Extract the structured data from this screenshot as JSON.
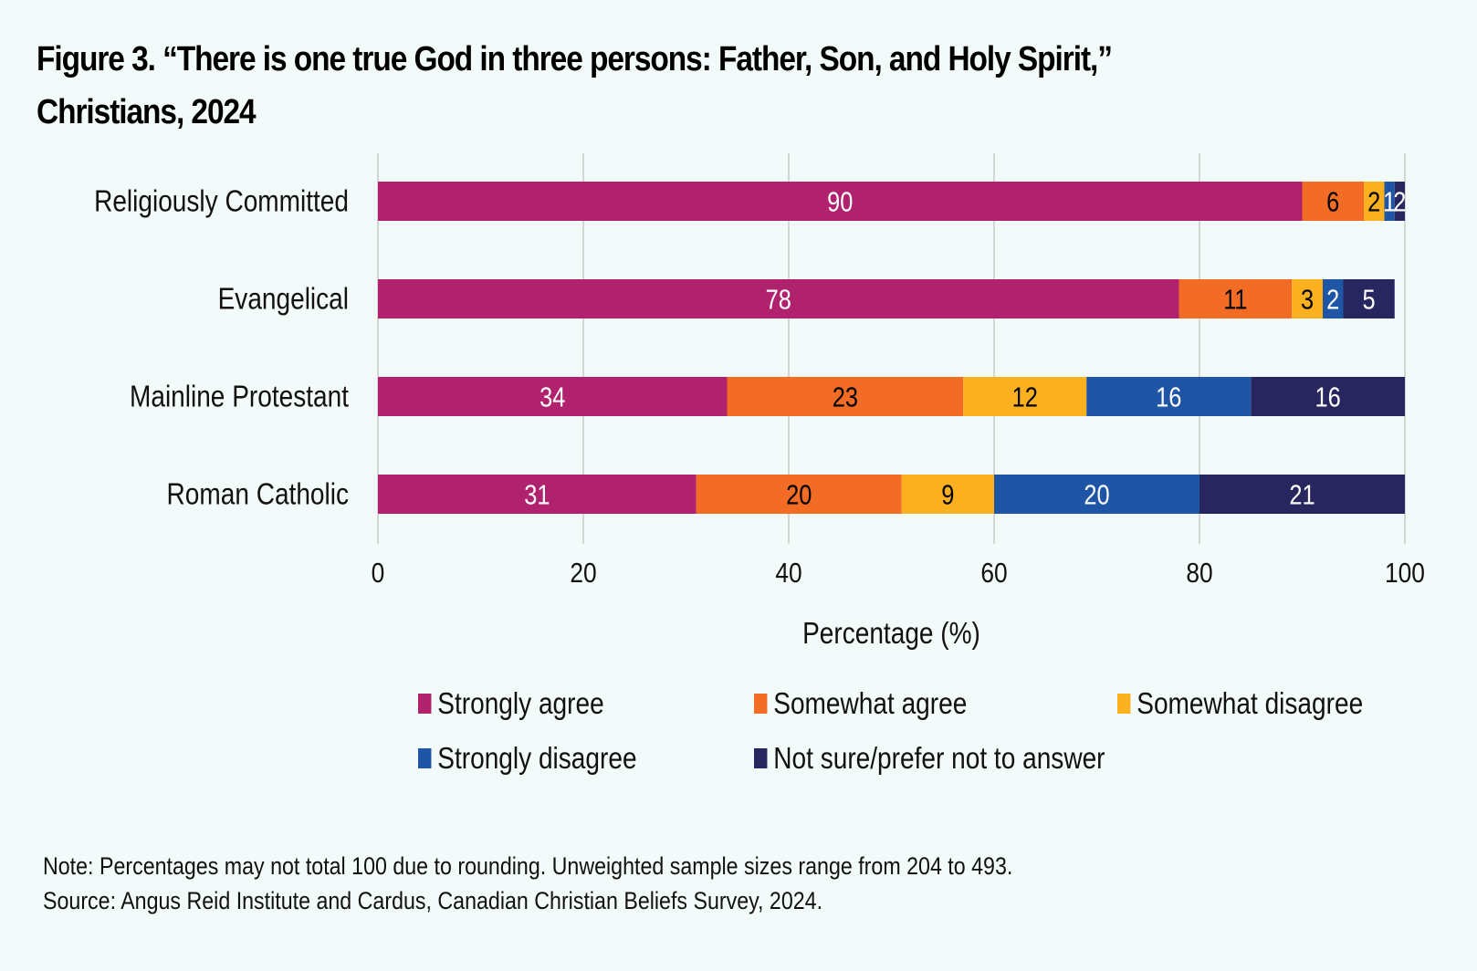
{
  "chart_data": {
    "type": "bar",
    "orientation": "horizontal",
    "stacked": true,
    "title": "Figure 3. “There is one true God in three persons: Father, Son, and Holy Spirit,” Christians, 2024",
    "title_lines": [
      "Figure 3. “There is one true God in three persons: Father, Son, and Holy Spirit,”",
      "Christians, 2024"
    ],
    "categories": [
      "Religiously Committed",
      "Evangelical",
      "Mainline Protestant",
      "Roman Catholic"
    ],
    "series": [
      {
        "name": "Strongly agree",
        "color": "#b0216e",
        "label_color": "#ffffff",
        "values": [
          90,
          78,
          34,
          31
        ]
      },
      {
        "name": "Somewhat agree",
        "color": "#f26c26",
        "label_color": "#000000",
        "values": [
          6,
          11,
          23,
          20
        ]
      },
      {
        "name": "Somewhat disagree",
        "color": "#fbb11f",
        "label_color": "#000000",
        "values": [
          2,
          3,
          12,
          9
        ]
      },
      {
        "name": "Strongly disagree",
        "color": "#1f55a5",
        "label_color": "#ffffff",
        "values": [
          1,
          2,
          16,
          20
        ]
      },
      {
        "name": "Not sure/prefer not to answer",
        "color": "#28265f",
        "label_color": "#ffffff",
        "values": [
          2,
          5,
          16,
          21
        ]
      }
    ],
    "xlabel": "Percentage (%)",
    "ylabel": "",
    "xlim": [
      0,
      100
    ],
    "xticks": [
      0,
      20,
      40,
      60,
      80,
      100
    ],
    "grid": true,
    "legend_position": "bottom"
  },
  "notes": {
    "note": "Note: Percentages may not total 100 due to rounding. Unweighted sample sizes range from 204 to 493.",
    "source": "Source: Angus Reid Institute and Cardus, Canadian Christian Beliefs Survey, 2024."
  }
}
